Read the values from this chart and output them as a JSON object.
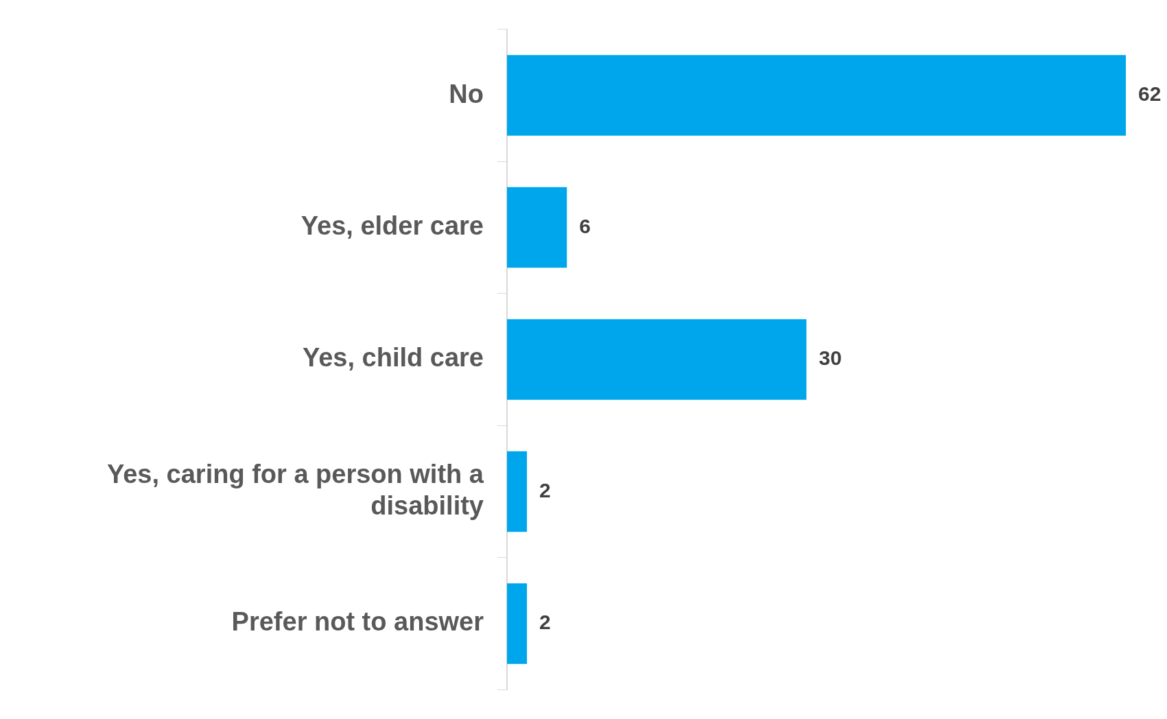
{
  "chart_data": {
    "type": "bar",
    "orientation": "horizontal",
    "categories": [
      "No",
      "Yes, elder care",
      "Yes, child care",
      "Yes, caring for a person with a disability",
      "Prefer not to answer"
    ],
    "values": [
      62,
      6,
      30,
      2,
      2
    ],
    "color": "#00a6eb",
    "data_labels": true
  }
}
